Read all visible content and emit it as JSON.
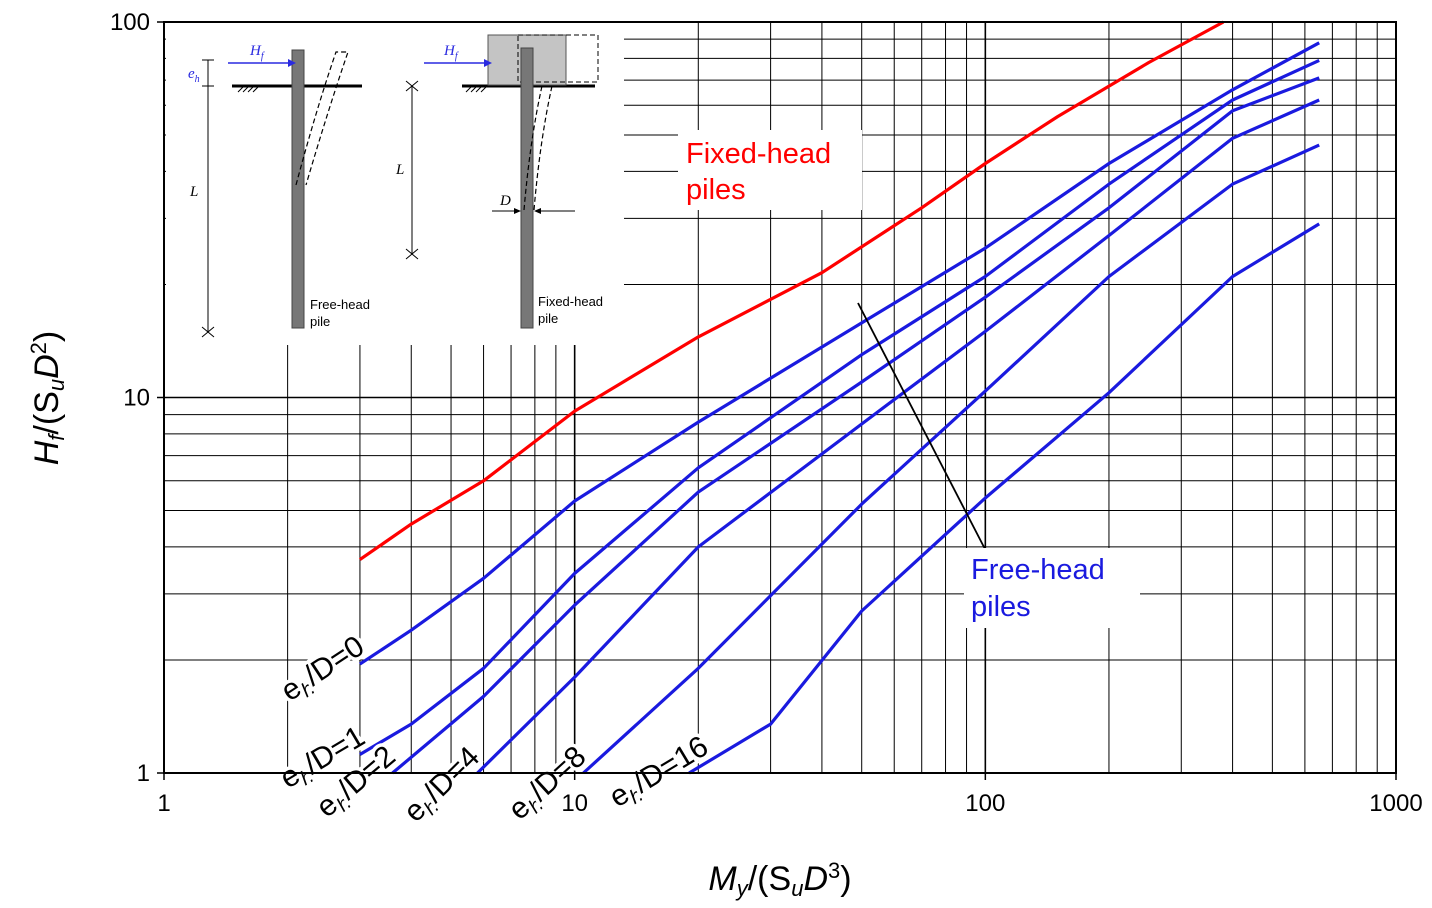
{
  "chart_data": {
    "type": "line",
    "x_scale": "log",
    "y_scale": "log",
    "xlim": [
      1,
      1000
    ],
    "ylim": [
      1,
      100
    ],
    "grid": true,
    "legend": "none",
    "xlabel": "My/(SuD3)",
    "ylabel": "Hf/(SuD2)",
    "x_ticks": [
      "1",
      "10",
      "100",
      "1000"
    ],
    "y_ticks": [
      "1",
      "10",
      "100"
    ],
    "colors": {
      "fixed": "#ff0000",
      "free": "#1a1adf",
      "grid": "#000000"
    },
    "series": [
      {
        "name": "Fixed-head piles",
        "group": "fixed",
        "points": [
          [
            3,
            3.7
          ],
          [
            4,
            4.6
          ],
          [
            6,
            6.0
          ],
          [
            10,
            9.2
          ],
          [
            20,
            14.5
          ],
          [
            40,
            21.5
          ],
          [
            70,
            32
          ],
          [
            100,
            42
          ],
          [
            150,
            56
          ],
          [
            250,
            78
          ],
          [
            380,
            100
          ]
        ]
      },
      {
        "name": "eh/D=0",
        "group": "free",
        "points": [
          [
            3,
            1.95
          ],
          [
            4,
            2.4
          ],
          [
            6,
            3.3
          ],
          [
            10,
            5.3
          ],
          [
            20,
            8.6
          ],
          [
            50,
            15.8
          ],
          [
            100,
            25
          ],
          [
            200,
            42
          ],
          [
            400,
            66
          ],
          [
            650,
            88
          ]
        ]
      },
      {
        "name": "eh/D=1",
        "group": "free",
        "points": [
          [
            3,
            1.12
          ],
          [
            4,
            1.35
          ],
          [
            6,
            1.9
          ],
          [
            10,
            3.4
          ],
          [
            20,
            6.5
          ],
          [
            50,
            13
          ],
          [
            100,
            21
          ],
          [
            200,
            37
          ],
          [
            400,
            62
          ],
          [
            650,
            79
          ]
        ]
      },
      {
        "name": "eh/D=2",
        "group": "free",
        "points": [
          [
            3.6,
            1.0
          ],
          [
            6,
            1.6
          ],
          [
            10,
            2.8
          ],
          [
            20,
            5.6
          ],
          [
            50,
            11
          ],
          [
            100,
            18.5
          ],
          [
            200,
            32
          ],
          [
            400,
            58
          ],
          [
            650,
            71
          ]
        ]
      },
      {
        "name": "eh/D=4",
        "group": "free",
        "points": [
          [
            5.8,
            1.0
          ],
          [
            10,
            1.8
          ],
          [
            20,
            4.0
          ],
          [
            50,
            8.5
          ],
          [
            100,
            15
          ],
          [
            200,
            27
          ],
          [
            400,
            49
          ],
          [
            650,
            62
          ]
        ]
      },
      {
        "name": "eh/D=8",
        "group": "free",
        "points": [
          [
            10.5,
            1.0
          ],
          [
            20,
            1.9
          ],
          [
            50,
            5.2
          ],
          [
            100,
            10.4
          ],
          [
            200,
            21
          ],
          [
            400,
            37
          ],
          [
            650,
            47
          ]
        ]
      },
      {
        "name": "eh/D=16",
        "group": "free",
        "points": [
          [
            19,
            1.0
          ],
          [
            30,
            1.35
          ],
          [
            50,
            2.7
          ],
          [
            100,
            5.4
          ],
          [
            200,
            10.3
          ],
          [
            400,
            21
          ],
          [
            650,
            29
          ]
        ]
      }
    ],
    "series_labels": [
      {
        "series": "eh/D=0",
        "base": "e",
        "sub": "h",
        "rest": "/D=0"
      },
      {
        "series": "eh/D=1",
        "base": "e",
        "sub": "h",
        "rest": "/D=1"
      },
      {
        "series": "eh/D=2",
        "base": "e",
        "sub": "h",
        "rest": "/D=2"
      },
      {
        "series": "eh/D=4",
        "base": "e",
        "sub": "h",
        "rest": "/D=4"
      },
      {
        "series": "eh/D=8",
        "base": "e",
        "sub": "h",
        "rest": "/D=8"
      },
      {
        "series": "eh/D=16",
        "base": "e",
        "sub": "h",
        "rest": "/D=16"
      }
    ],
    "annotations": {
      "fixed_line1": "Fixed-head",
      "fixed_line2": "piles",
      "free_line1": "Free-head",
      "free_line2": "piles"
    }
  },
  "axis_titles": {
    "x": {
      "M": "M",
      "y": "y",
      "open": "/(S",
      "u": "u",
      "D": "D",
      "exp": "3",
      "close": ")"
    },
    "y": {
      "H": "H",
      "f": "f",
      "open": "/(S",
      "u": "u",
      "D": "D",
      "exp": "2",
      "close": ")"
    }
  },
  "inset": {
    "free_label_1": "Free-head",
    "free_label_2": "pile",
    "fixed_label_1": "Fixed-head",
    "fixed_label_2": "pile",
    "H": "H",
    "f": "f",
    "e": "e",
    "h": "h",
    "L": "L",
    "D": "D"
  }
}
